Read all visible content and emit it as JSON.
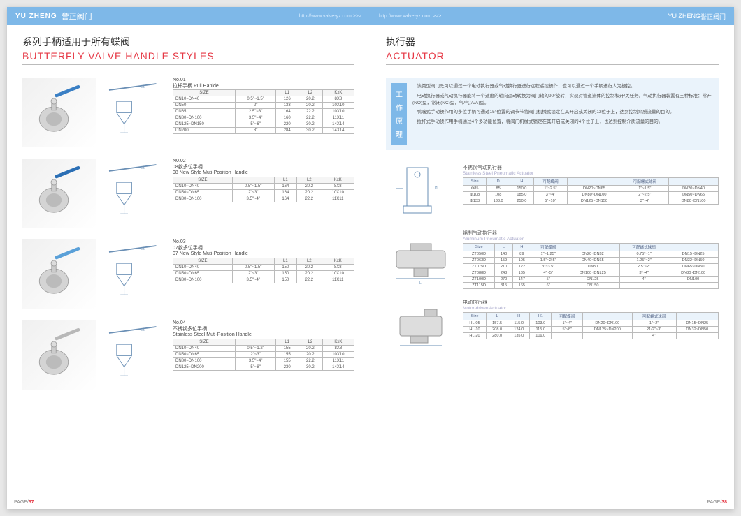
{
  "brand_en": "YU ZHENG",
  "brand_cn": "誉正阀门",
  "url": "http://www.valve-yz.com >>>",
  "left": {
    "title_cn": "系列手柄适用于所有蝶阀",
    "title_en": "BUTTERFLY VALVE HANDLE STYLES",
    "page_no": "37",
    "products": [
      {
        "no": "No.01",
        "name_cn": "拉杆手柄 Pull Hanlde",
        "name_en": "",
        "cols": [
          "SIZE",
          "",
          "L1",
          "L2",
          "KxK"
        ],
        "rows": [
          [
            "DN10~DN40",
            "0.5\"~1.5\"",
            "126",
            "20.2",
            "8X8"
          ],
          [
            "DN50",
            "2\"",
            "133",
            "20.2",
            "10X10"
          ],
          [
            "DN65",
            "2.5\"~3\"",
            "164",
            "22.2",
            "10X10"
          ],
          [
            "DN80~DN100",
            "3.5\"~4\"",
            "160",
            "22.2",
            "11X11"
          ],
          [
            "DN125~DN150",
            "5\"~6\"",
            "220",
            "30.2",
            "14X14"
          ],
          [
            "DN200",
            "8\"",
            "284",
            "30.2",
            "14X14"
          ]
        ],
        "accent": "#3a7fc4"
      },
      {
        "no": "N0.02",
        "name_cn": "08款多位手柄",
        "name_en": "08 New Style Muti-Position Handle",
        "cols": [
          "SIZE",
          "",
          "L1",
          "L2",
          "KxK"
        ],
        "rows": [
          [
            "DN10~DN40",
            "0.5\"~1.5\"",
            "164",
            "20.2",
            "8X8"
          ],
          [
            "DN50~DN65",
            "2\"~3\"",
            "164",
            "20.2",
            "10X10"
          ],
          [
            "DN80~DN100",
            "3.5\"~4\"",
            "164",
            "22.2",
            "11X11"
          ]
        ],
        "accent": "#2b6fb5"
      },
      {
        "no": "No.03",
        "name_cn": "07款多位手柄",
        "name_en": "07 New Style Muti-Position Handle",
        "cols": [
          "SIZE",
          "",
          "L1",
          "L2",
          "KxK"
        ],
        "rows": [
          [
            "DN10~DN40",
            "0.5\"~1.5\"",
            "150",
            "20.2",
            "8X8"
          ],
          [
            "DN50~DN65",
            "2\"~3\"",
            "150",
            "20.2",
            "10X10"
          ],
          [
            "DN80~DN100",
            "3.5\"~4\"",
            "150",
            "22.2",
            "11X11"
          ]
        ],
        "accent": "#5aa0d8"
      },
      {
        "no": "No.04",
        "name_cn": "不锈钢多位手柄",
        "name_en": "Stainless Steel Muti-Position Handle",
        "cols": [
          "SIZE",
          "",
          "L1",
          "L2",
          "KxK"
        ],
        "rows": [
          [
            "DN10~DN40",
            "0.5\"~1.2\"",
            "155",
            "20.2",
            "8X8"
          ],
          [
            "DN50~DN65",
            "2\"~3\"",
            "155",
            "20.2",
            "10X10"
          ],
          [
            "DN80~DN100",
            "3.5\"~4\"",
            "155",
            "22.2",
            "11X11"
          ],
          [
            "DN125~DN200",
            "5\"~8\"",
            "230",
            "30.2",
            "14X14"
          ]
        ],
        "accent": "#b8b8b8"
      }
    ]
  },
  "right": {
    "title_cn": "执行器",
    "title_en": "ACTUATOR",
    "page_no": "38",
    "work_label": [
      "工",
      "作",
      "原",
      "理"
    ],
    "info_lines": [
      "该类型阀门既可以通过一个电动执行器或气动执行器进行远程遥控操作，也可以通过一个手柄进行人为操控。",
      "电动执行器或气动执行器能将一个适度的轴向运动转换为阀门轴的90°旋转，实现对管道流体的控制和开/关任务。气动执行器装置有三种标准：常开(NO)型，常闭(NC)型，气/气(A/A)型。",
      "鸭嘴式手动操作用的多位手柄可通过15°位置的调节节将阀门机械式锁定在其开启或关闭的12位于上，达到控制介质流量的目的。",
      "拉杆式手动操作用手柄通过4个多功能位置，将阀门机械式锁定在其开启或关闭的4个位子上，也达到控制介质流量的目的。"
    ],
    "actuators": [
      {
        "title_cn": "不锈钢气动执行器",
        "title_en": "Stainless Steel Pneumatic Actuator",
        "cols": [
          "Size",
          "D",
          "H",
          "可配蝶阀",
          "",
          "可配螺式球阀",
          ""
        ],
        "rows": [
          [
            "Φ85",
            "85",
            "150.0",
            "1\"~2.5\"",
            "DN20~DN65",
            "1\"~1.5\"",
            "DN20~DN40"
          ],
          [
            "Φ108",
            "108",
            "185.0",
            "3\"~4\"",
            "DN80~DN100",
            "2\"~2.5\"",
            "DN50~DN65"
          ],
          [
            "Φ133",
            "133.0",
            "250.0",
            "5\"~10\"",
            "DN125~DN150",
            "3\"~4\"",
            "DN80~DN100"
          ]
        ]
      },
      {
        "title_cn": "铝制气动执行器",
        "title_en": "Aluminum Pneumatic Actuator",
        "cols": [
          "Size",
          "L",
          "H",
          "可配蝶阀",
          "",
          "可配螺式球阀",
          ""
        ],
        "rows": [
          [
            "ZT050D",
            "140",
            "89",
            "1\"~1.25\"",
            "DN20~DN32",
            "0.75\"~1\"",
            "DN15~DN25"
          ],
          [
            "ZT063D",
            "159",
            "105",
            "1.5\"~2.5\"",
            "DN40~DN65",
            "1.25\"~2\"",
            "DN32~DN50"
          ],
          [
            "ZT075D",
            "210",
            "122",
            "3\"~3.5\"",
            "DN80",
            "2.5\"~2\"",
            "DN65~DN50"
          ],
          [
            "ZT088D",
            "248",
            "135",
            "4\"~5\"",
            "DN100~DN125",
            "3\"~4\"",
            "DN80~DN100"
          ],
          [
            "ZT100D",
            "270",
            "147",
            "5\"",
            "DN125",
            "4\"",
            "DN100"
          ],
          [
            "ZT115D",
            "315",
            "165",
            "6\"",
            "DN150",
            "",
            ""
          ]
        ]
      },
      {
        "title_cn": "电动执行器",
        "title_en": "Motor-driven Actuator",
        "cols": [
          "Size",
          "L",
          "H",
          "H1",
          "可配蝶阀",
          "",
          "可配螺式球阀",
          ""
        ],
        "rows": [
          [
            "HL-05",
            "157.5",
            "115.0",
            "103.0",
            "1\"~4\"",
            "DN20~DN100",
            "1\"~2\"",
            "DN15~DN25"
          ],
          [
            "HL-10",
            "208.0",
            "124.0",
            "115.0",
            "5\"~8\"",
            "DN125~DN200",
            "21/2\"~3\"",
            "DN32~DN50"
          ],
          [
            "HL-20",
            "280.0",
            "135.0",
            "109.0",
            "",
            "",
            "4\"",
            ""
          ]
        ]
      }
    ]
  }
}
